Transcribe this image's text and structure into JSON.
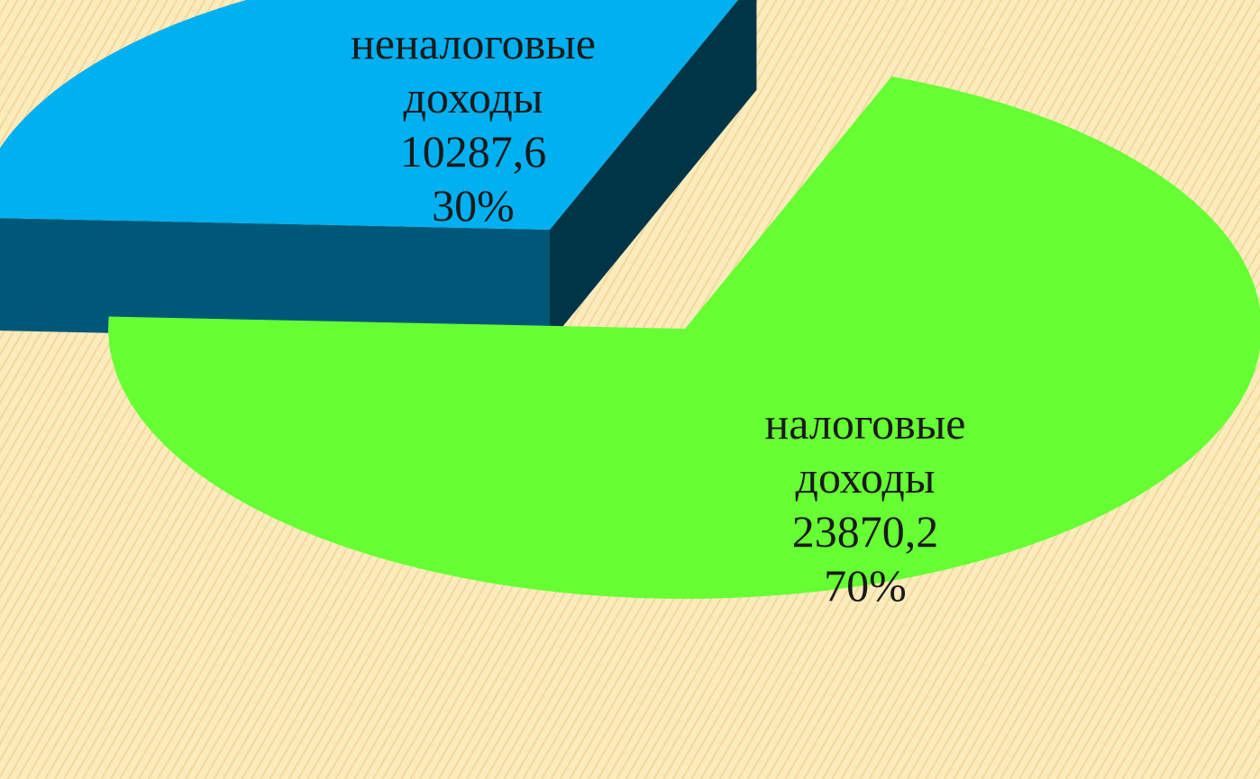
{
  "chart_data": {
    "type": "pie",
    "categories": [
      "неналоговые доходы",
      "налоговые доходы"
    ],
    "values": [
      10287.6,
      23870.2
    ],
    "value_labels": [
      "10287,6",
      "23870,2"
    ],
    "percents": [
      30,
      70
    ],
    "percent_labels": [
      "30%",
      "70%"
    ],
    "colors": [
      "#00b0f0",
      "#66ff33"
    ]
  }
}
